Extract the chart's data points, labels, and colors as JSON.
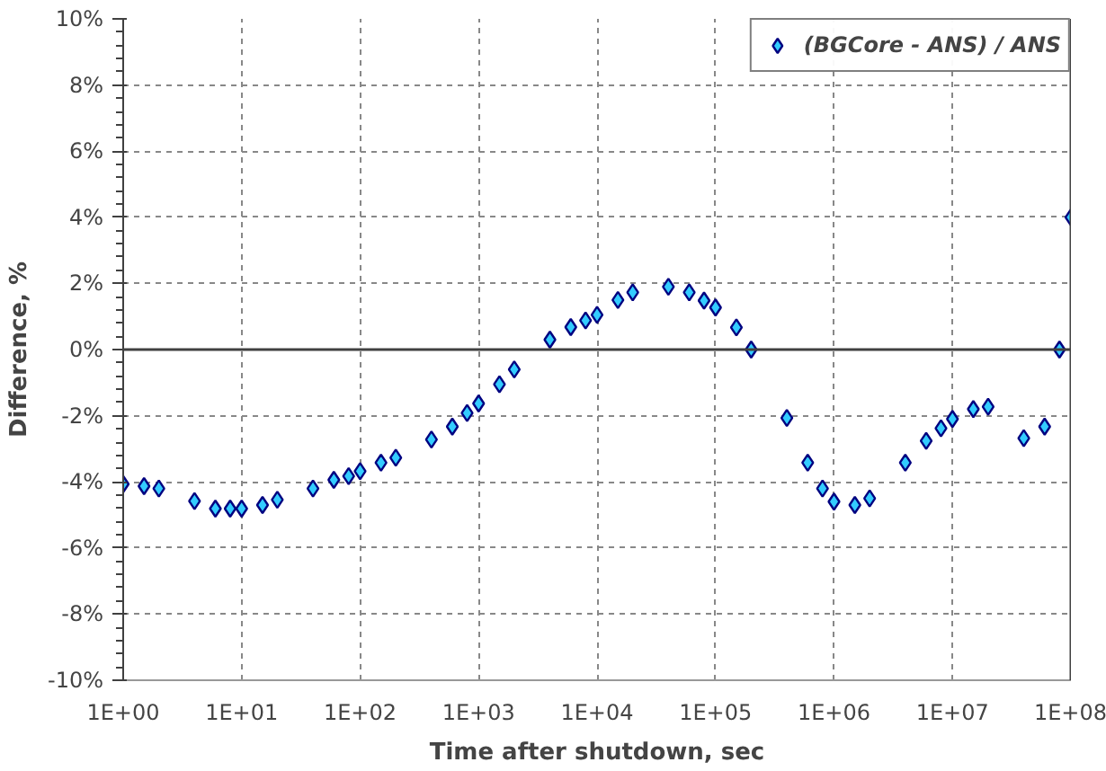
{
  "chart_data": {
    "type": "scatter",
    "xlabel": "Time after shutdown, sec",
    "ylabel": "Difference, %",
    "log": "x",
    "grid": true,
    "legend": "top right",
    "marker": "diamond",
    "xlim": [
      1,
      100000000
    ],
    "ylim": [
      -10,
      10
    ],
    "xticks": [
      {
        "value": 1,
        "label": "1E+00"
      },
      {
        "value": 10,
        "label": "1E+01"
      },
      {
        "value": 100,
        "label": "1E+02"
      },
      {
        "value": 1000,
        "label": "1E+03"
      },
      {
        "value": 10000,
        "label": "1E+04"
      },
      {
        "value": 100000,
        "label": "1E+05"
      },
      {
        "value": 1000000,
        "label": "1E+06"
      },
      {
        "value": 10000000,
        "label": "1E+07"
      },
      {
        "value": 100000000,
        "label": "1E+08"
      }
    ],
    "yticks": [
      {
        "value": -10,
        "label": "-10%"
      },
      {
        "value": -8,
        "label": "-8%"
      },
      {
        "value": -6,
        "label": "-6%"
      },
      {
        "value": -4,
        "label": "-4%"
      },
      {
        "value": -2,
        "label": "-2%"
      },
      {
        "value": 0,
        "label": "0%"
      },
      {
        "value": 2,
        "label": "2%"
      },
      {
        "value": 4,
        "label": "4%"
      },
      {
        "value": 6,
        "label": "6%"
      },
      {
        "value": 8,
        "label": "8%"
      },
      {
        "value": 10,
        "label": "10%"
      }
    ],
    "ref_lines": [
      {
        "axis": "y",
        "value": 0,
        "color": "#404040"
      }
    ],
    "series": [
      {
        "name": "(BGCore - ANS) / ANS",
        "color": "#33ccff",
        "x": [
          1,
          1.5,
          2,
          4,
          6,
          8,
          10,
          15,
          20,
          40,
          60,
          80,
          100,
          150,
          200,
          400,
          600,
          800,
          1000,
          1500,
          2000,
          4000,
          6000,
          8000,
          10000,
          15000,
          20000,
          40000,
          60000,
          80000,
          100000,
          150000,
          200000,
          400000,
          600000,
          800000,
          1000000,
          1500000,
          2000000,
          4000000,
          6000000,
          8000000,
          10000000,
          15000000,
          20000000,
          40000000,
          60000000,
          80000000,
          100000000
        ],
        "values": [
          -4.07,
          -4.13,
          -4.2,
          -4.58,
          -4.81,
          -4.81,
          -4.81,
          -4.7,
          -4.54,
          -4.2,
          -3.94,
          -3.83,
          -3.68,
          -3.42,
          -3.27,
          -2.72,
          -2.33,
          -1.92,
          -1.63,
          -1.05,
          -0.6,
          0.3,
          0.68,
          0.88,
          1.05,
          1.5,
          1.73,
          1.9,
          1.73,
          1.48,
          1.27,
          0.67,
          0.0,
          -2.07,
          -3.42,
          -4.2,
          -4.6,
          -4.7,
          -4.5,
          -3.42,
          -2.76,
          -2.38,
          -2.1,
          -1.8,
          -1.73,
          -2.68,
          -2.33,
          0.0,
          4.0
        ]
      }
    ]
  }
}
